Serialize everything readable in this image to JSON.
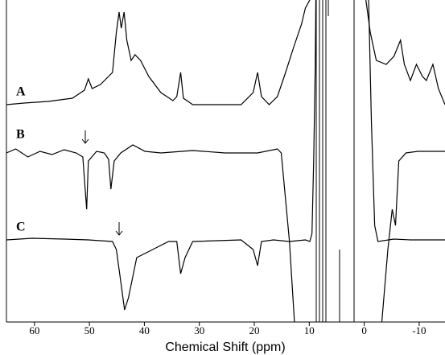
{
  "chart_data": {
    "type": "line",
    "xlabel": "Chemical Shift (ppm)",
    "xlim": [
      65.1,
      -14.7
    ],
    "xticks": [
      60,
      50,
      40,
      30,
      20,
      10,
      0,
      -10
    ],
    "ylim": [
      0,
      400
    ],
    "series": [
      {
        "name": "A",
        "color": "#000000",
        "x": [
          65.1,
          61.9,
          57.5,
          53.1,
          50.9,
          50.2,
          49.5,
          48.0,
          45.8,
          45.1,
          44.6,
          44.2,
          43.7,
          43.2,
          42.4,
          41.7,
          40.7,
          39.2,
          37.0,
          34.8,
          34.1,
          33.4,
          32.9,
          31.2,
          22.4,
          20.2,
          19.4,
          18.7,
          17.3,
          15.8,
          14.3,
          12.9,
          11.4,
          10.7,
          9.9,
          null,
          -0.3,
          -1.1,
          -2.2,
          -4.0,
          -5.4,
          -6.6,
          -7.3,
          -8.4,
          -9.5,
          -10.6,
          -11.3,
          -12.5,
          -13.5,
          -14.7
        ],
        "values": [
          270,
          272,
          274,
          278,
          288,
          302,
          290,
          295,
          310,
          360,
          385,
          365,
          385,
          350,
          325,
          332,
          325,
          305,
          285,
          275,
          280,
          310,
          278,
          270,
          270,
          285,
          310,
          280,
          270,
          280,
          310,
          340,
          370,
          390,
          400,
          null,
          400,
          360,
          325,
          320,
          330,
          350,
          320,
          300,
          320,
          305,
          300,
          320,
          290,
          270
        ]
      },
      {
        "name": "B",
        "color": "#000000",
        "x": [
          65.1,
          63.4,
          61.2,
          59.0,
          56.8,
          54.6,
          52.4,
          51.2,
          50.5,
          50.2,
          48.7,
          47.3,
          46.5,
          46.1,
          45.5,
          44.3,
          42.1,
          39.9,
          37.0,
          31.2,
          25.3,
          19.4,
          15.8,
          15.1,
          13.6,
          12.7,
          null,
          -3.2,
          -4.3,
          -5.1,
          -5.7,
          -6.3,
          -7.6,
          -9.8,
          -14.7
        ],
        "values": [
          210,
          215,
          205,
          212,
          208,
          214,
          210,
          205,
          140,
          200,
          212,
          210,
          202,
          165,
          200,
          210,
          220,
          212,
          210,
          213,
          210,
          210,
          215,
          210,
          100,
          0,
          null,
          0,
          90,
          140,
          120,
          200,
          210,
          212,
          212
        ]
      },
      {
        "name": "C",
        "color": "#000000",
        "x": [
          65.1,
          60.4,
          54.6,
          50.2,
          45.8,
          45.1,
          44.3,
          43.6,
          42.9,
          41.4,
          38.5,
          35.6,
          34.1,
          33.4,
          32.6,
          31.2,
          22.4,
          20.2,
          19.4,
          18.7,
          16.5,
          13.6,
          10.7,
          9.9,
          9.5,
          9.2,
          8.9,
          8.8,
          null,
          -0.8,
          -1.3,
          -1.9,
          -2.5,
          -5.4,
          -8.4,
          -14.7
        ],
        "values": [
          102,
          104,
          103,
          102,
          100,
          90,
          50,
          15,
          30,
          80,
          90,
          100,
          100,
          60,
          80,
          100,
          102,
          90,
          70,
          100,
          102,
          100,
          102,
          100,
          110,
          200,
          320,
          400,
          null,
          400,
          250,
          120,
          100,
          103,
          102,
          102
        ]
      }
    ]
  }
}
